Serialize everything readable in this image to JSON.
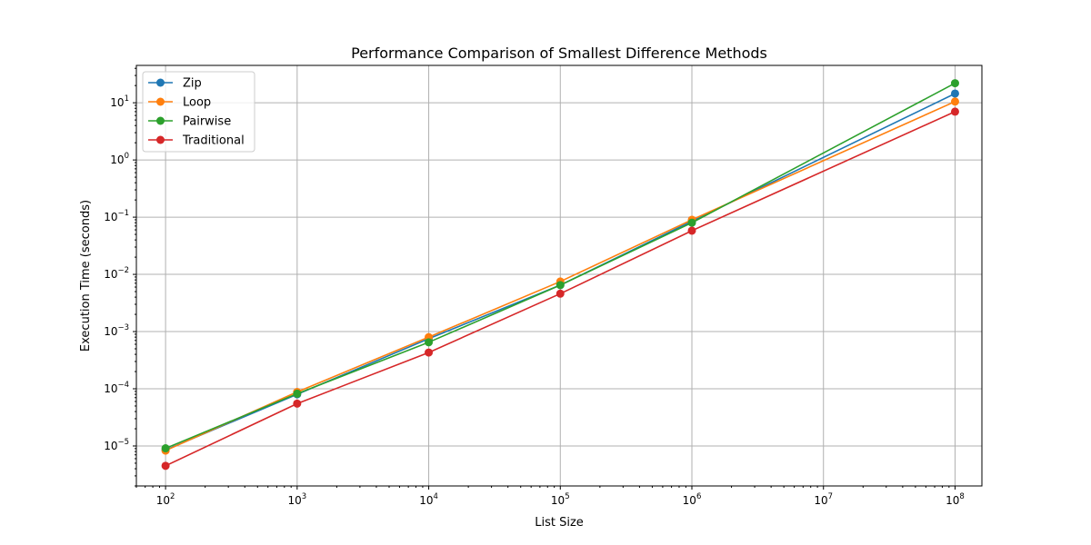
{
  "chart_data": {
    "type": "line",
    "title": "Performance Comparison of Smallest Difference Methods",
    "xlabel": "List Size",
    "ylabel": "Execution Time (seconds)",
    "xscale": "log",
    "yscale": "log",
    "xlim": [
      60,
      160000000
    ],
    "ylim": [
      2e-06,
      45
    ],
    "grid": true,
    "legend_position": "top-left",
    "x": [
      100,
      1000,
      10000,
      100000,
      1000000,
      100000000
    ],
    "x_ticks": [
      {
        "value": 100,
        "base": "10",
        "exp": "2"
      },
      {
        "value": 1000,
        "base": "10",
        "exp": "3"
      },
      {
        "value": 10000,
        "base": "10",
        "exp": "4"
      },
      {
        "value": 100000,
        "base": "10",
        "exp": "5"
      },
      {
        "value": 1000000,
        "base": "10",
        "exp": "6"
      },
      {
        "value": 10000000,
        "base": "10",
        "exp": "7"
      },
      {
        "value": 100000000,
        "base": "10",
        "exp": "8"
      }
    ],
    "y_ticks": [
      {
        "value": 1e-05,
        "base": "10",
        "exp": "−5"
      },
      {
        "value": 0.0001,
        "base": "10",
        "exp": "−4"
      },
      {
        "value": 0.001,
        "base": "10",
        "exp": "−3"
      },
      {
        "value": 0.01,
        "base": "10",
        "exp": "−2"
      },
      {
        "value": 0.1,
        "base": "10",
        "exp": "−1"
      },
      {
        "value": 1,
        "base": "10",
        "exp": "0"
      },
      {
        "value": 10,
        "base": "10",
        "exp": "1"
      }
    ],
    "series": [
      {
        "name": "Zip",
        "color": "#1f77b4",
        "values": [
          8.5e-06,
          8e-05,
          0.00075,
          0.0065,
          0.085,
          14.5
        ]
      },
      {
        "name": "Loop",
        "color": "#ff7f0e",
        "values": [
          8.3e-06,
          8.8e-05,
          0.0008,
          0.0075,
          0.09,
          10.5
        ]
      },
      {
        "name": "Pairwise",
        "color": "#2ca02c",
        "values": [
          9.1e-06,
          8.2e-05,
          0.00065,
          0.0065,
          0.08,
          22
        ]
      },
      {
        "name": "Traditional",
        "color": "#d62728",
        "values": [
          4.5e-06,
          5.5e-05,
          0.00043,
          0.0046,
          0.058,
          7
        ]
      }
    ]
  }
}
